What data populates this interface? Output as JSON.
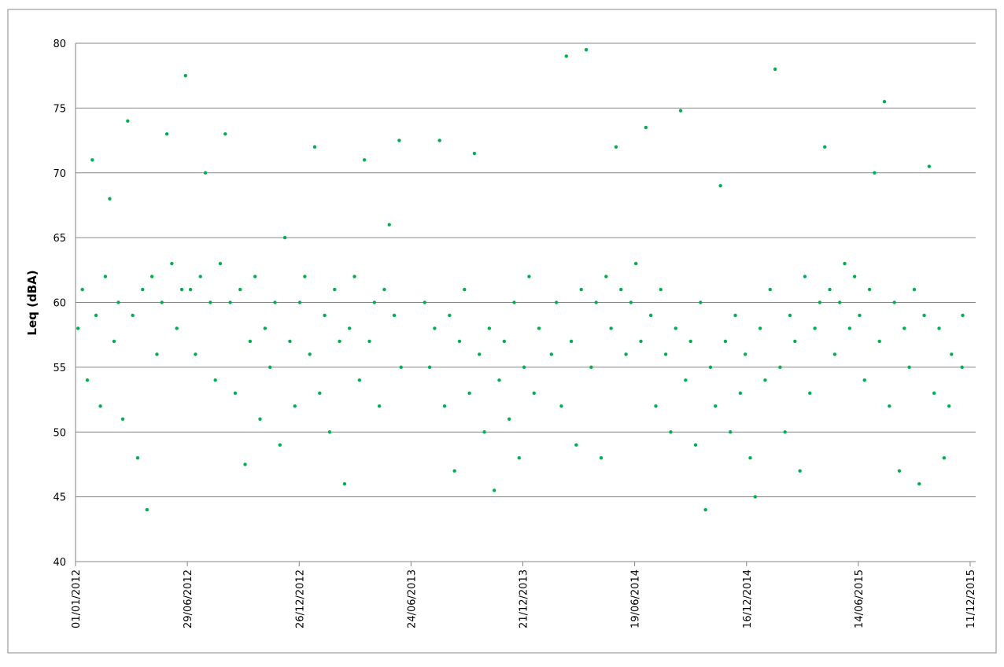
{
  "chart_data": {
    "type": "scatter",
    "y_label": "Leq (dBA)",
    "color": "#00b050",
    "grid": true,
    "ylim": [
      40,
      80
    ],
    "yticks": [
      40,
      45,
      50,
      55,
      60,
      65,
      70,
      75,
      80
    ],
    "xlim": [
      "01/01/2012",
      "11/12/2015"
    ],
    "xticks": [
      "01/01/2012",
      "29/06/2012",
      "26/12/2012",
      "24/06/2013",
      "21/12/2013",
      "19/06/2014",
      "16/12/2014",
      "14/06/2015",
      "11/12/2015"
    ],
    "x": [
      "05/01/2012",
      "12/01/2012",
      "20/01/2012",
      "28/01/2012",
      "03/02/2012",
      "10/02/2012",
      "18/02/2012",
      "25/02/2012",
      "03/03/2012",
      "10/03/2012",
      "17/03/2012",
      "25/03/2012",
      "02/04/2012",
      "10/04/2012",
      "18/04/2012",
      "25/04/2012",
      "03/05/2012",
      "11/05/2012",
      "19/05/2012",
      "27/05/2012",
      "04/06/2012",
      "12/06/2012",
      "20/06/2012",
      "26/06/2012",
      "04/07/2012",
      "12/07/2012",
      "20/07/2012",
      "28/07/2012",
      "05/08/2012",
      "13/08/2012",
      "21/08/2012",
      "29/08/2012",
      "06/09/2012",
      "14/09/2012",
      "22/09/2012",
      "30/09/2012",
      "08/10/2012",
      "16/10/2012",
      "24/10/2012",
      "01/11/2012",
      "09/11/2012",
      "17/11/2012",
      "25/11/2012",
      "03/12/2012",
      "11/12/2012",
      "19/12/2012",
      "27/12/2012",
      "04/01/2013",
      "12/01/2013",
      "20/01/2013",
      "28/01/2013",
      "05/02/2013",
      "13/02/2013",
      "21/02/2013",
      "01/03/2013",
      "09/03/2013",
      "17/03/2013",
      "25/03/2013",
      "02/04/2013",
      "10/04/2013",
      "18/04/2013",
      "26/04/2013",
      "04/05/2013",
      "12/05/2013",
      "20/05/2013",
      "28/05/2013",
      "05/06/2013",
      "08/06/2013",
      "16/07/2013",
      "24/07/2013",
      "01/08/2013",
      "09/08/2013",
      "17/08/2013",
      "25/08/2013",
      "02/09/2013",
      "10/09/2013",
      "18/09/2013",
      "26/09/2013",
      "04/10/2013",
      "12/10/2013",
      "20/10/2013",
      "28/10/2013",
      "05/11/2013",
      "13/11/2013",
      "21/11/2013",
      "29/11/2013",
      "07/12/2013",
      "15/12/2013",
      "23/12/2013",
      "31/12/2013",
      "08/01/2014",
      "16/01/2014",
      "05/02/2014",
      "13/02/2014",
      "21/02/2014",
      "01/03/2014",
      "09/03/2014",
      "17/03/2014",
      "25/03/2014",
      "02/04/2014",
      "10/04/2014",
      "18/04/2014",
      "26/04/2014",
      "04/05/2014",
      "12/05/2014",
      "20/05/2014",
      "28/05/2014",
      "05/06/2014",
      "13/06/2014",
      "21/06/2014",
      "29/06/2014",
      "07/07/2014",
      "15/07/2014",
      "23/07/2014",
      "31/07/2014",
      "08/08/2014",
      "16/08/2014",
      "24/08/2014",
      "01/09/2014",
      "09/09/2014",
      "17/09/2014",
      "25/09/2014",
      "03/10/2014",
      "11/10/2014",
      "19/10/2014",
      "27/10/2014",
      "04/11/2014",
      "12/11/2014",
      "20/11/2014",
      "28/11/2014",
      "06/12/2014",
      "14/12/2014",
      "22/12/2014",
      "30/12/2014",
      "07/01/2015",
      "15/01/2015",
      "23/01/2015",
      "31/01/2015",
      "08/02/2015",
      "16/02/2015",
      "24/02/2015",
      "04/03/2015",
      "12/03/2015",
      "20/03/2015",
      "28/03/2015",
      "05/04/2015",
      "13/04/2015",
      "21/04/2015",
      "29/04/2015",
      "07/05/2015",
      "15/05/2015",
      "23/05/2015",
      "31/05/2015",
      "08/06/2015",
      "16/06/2015",
      "24/06/2015",
      "02/07/2015",
      "10/07/2015",
      "18/07/2015",
      "26/07/2015",
      "03/08/2015",
      "11/08/2015",
      "19/08/2015",
      "27/08/2015",
      "04/09/2015",
      "12/09/2015",
      "20/09/2015",
      "28/09/2015",
      "06/10/2015",
      "14/10/2015",
      "22/10/2015",
      "30/10/2015",
      "07/11/2015",
      "11/11/2015",
      "28/11/2015",
      "29/11/2015"
    ],
    "values": [
      58,
      61,
      54,
      71,
      59,
      52,
      62,
      68,
      57,
      60,
      51,
      74,
      59,
      48,
      61,
      44,
      62,
      56,
      60,
      73,
      63,
      58,
      61,
      77.5,
      61,
      56,
      62,
      70,
      60,
      54,
      63,
      73,
      60,
      53,
      61,
      47.5,
      57,
      62,
      51,
      58,
      55,
      60,
      49,
      65,
      57,
      52,
      60,
      62,
      56,
      72,
      53,
      59,
      50,
      61,
      57,
      46,
      58,
      62,
      54,
      71,
      57,
      60,
      52,
      61,
      66,
      59,
      72.5,
      55,
      60,
      55,
      58,
      72.5,
      52,
      59,
      47,
      57,
      61,
      53,
      71.5,
      56,
      50,
      58,
      45.5,
      54,
      57,
      51,
      60,
      48,
      55,
      62,
      53,
      58,
      56,
      60,
      52,
      79,
      57,
      49,
      61,
      79.5,
      55,
      60,
      48,
      62,
      58,
      72,
      61,
      56,
      60,
      63,
      57,
      73.5,
      59,
      52,
      61,
      56,
      50,
      58,
      74.8,
      54,
      57,
      49,
      60,
      44,
      55,
      52,
      69,
      57,
      50,
      59,
      53,
      56,
      48,
      45,
      58,
      54,
      61,
      78,
      55,
      50,
      59,
      57,
      47,
      62,
      53,
      58,
      60,
      72,
      61,
      56,
      60,
      63,
      58,
      62,
      59,
      54,
      61,
      70,
      57,
      75.5,
      52,
      60,
      47,
      58,
      55,
      61,
      46,
      59,
      70.5,
      53,
      58,
      48,
      52,
      56,
      55,
      59
    ]
  }
}
